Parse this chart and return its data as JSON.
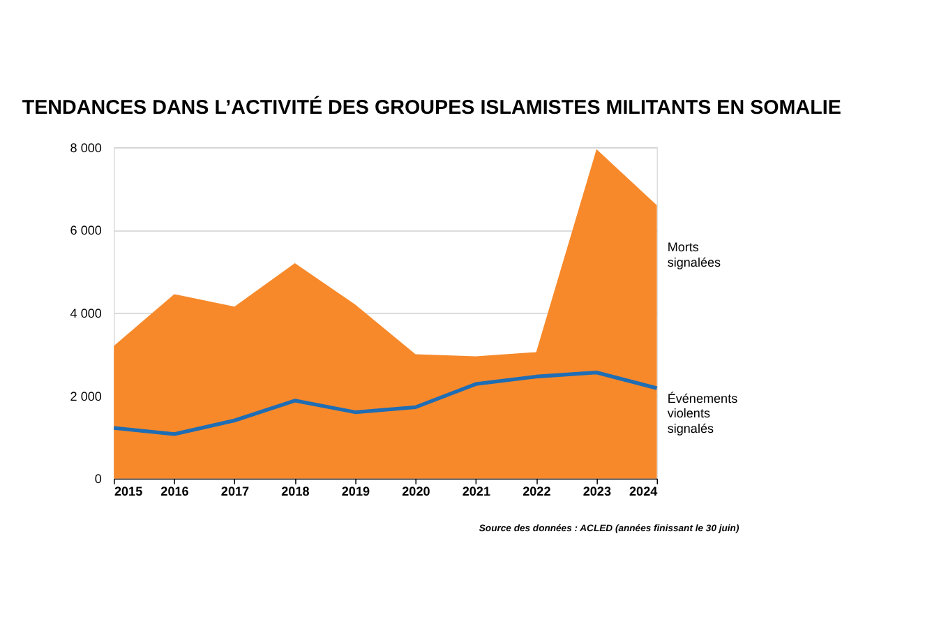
{
  "chart_data": {
    "type": "area",
    "title": "TENDANCES DANS L’ACTIVITÉ DES GROUPES ISLAMISTES MILITANTS EN SOMALIE",
    "x": [
      2015,
      2016,
      2017,
      2018,
      2019,
      2020,
      2021,
      2022,
      2023,
      2024
    ],
    "series": [
      {
        "name": "Morts signalées",
        "color": "#f7892a",
        "values": [
          3200,
          4450,
          4150,
          5200,
          4200,
          3000,
          2950,
          3050,
          7950,
          6600
        ]
      },
      {
        "name": "Événements violents signalés",
        "color": "#1f6db4",
        "type": "line",
        "values": [
          1220,
          1070,
          1400,
          1880,
          1600,
          1720,
          2280,
          2460,
          2560,
          2180
        ]
      }
    ],
    "xlim": [
      2015,
      2024
    ],
    "xticks": [
      2015,
      2016,
      2017,
      2018,
      2019,
      2020,
      2021,
      2022,
      2023,
      2024
    ],
    "ylim": [
      0,
      8000
    ],
    "yticks": [
      0,
      {
        "value": 2000,
        "label": "2 000"
      },
      {
        "value": 4000,
        "label": "4 000"
      },
      {
        "value": 6000,
        "label": "6 000"
      },
      {
        "value": 8000,
        "label": "8 000"
      }
    ],
    "grid": "y",
    "legend": false,
    "annotations": [
      "Source des données : ACLED (années finissant le 30 juin)"
    ]
  }
}
